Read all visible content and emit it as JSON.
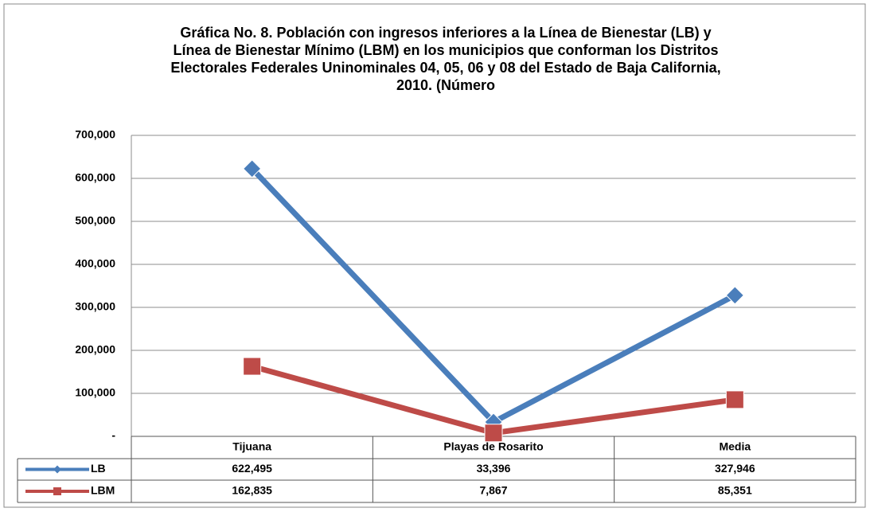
{
  "chart_data": {
    "type": "line",
    "title": "Gráfica No. 8. Población con ingresos inferiores a la Línea de Bienestar (LB) y Línea de Bienestar Mínimo (LBM) en los municipios que conforman los Distritos Electorales Federales Uninominales 04, 05, 06 y 08 del Estado de Baja California, 2010. (Número",
    "categories": [
      "Tijuana",
      "Playas de Rosarito",
      "Media"
    ],
    "series": [
      {
        "name": "LB",
        "color": "#4a7ebb",
        "marker": "diamond",
        "values": [
          622495,
          33396,
          327946
        ],
        "value_labels": [
          "622,495",
          "33,396",
          "327,946"
        ]
      },
      {
        "name": "LBM",
        "color": "#be4b48",
        "marker": "square",
        "values": [
          162835,
          7867,
          85351
        ],
        "value_labels": [
          "162,835",
          "7,867",
          "85,351"
        ]
      }
    ],
    "ylim": [
      0,
      700000
    ],
    "yticks": [
      {
        "value": 0,
        "label": "-"
      },
      {
        "value": 100000,
        "label": "100,000"
      },
      {
        "value": 200000,
        "label": "200,000"
      },
      {
        "value": 300000,
        "label": "300,000"
      },
      {
        "value": 400000,
        "label": "400,000"
      },
      {
        "value": 500000,
        "label": "500,000"
      },
      {
        "value": 600000,
        "label": "600,000"
      },
      {
        "value": 700000,
        "label": "700,000"
      }
    ],
    "grid": true
  }
}
